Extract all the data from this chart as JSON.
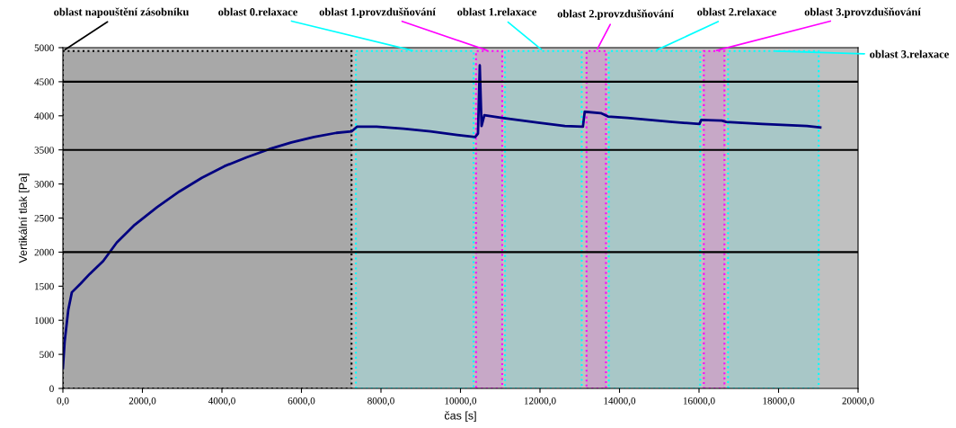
{
  "chart_data": {
    "type": "line",
    "xlabel": "čas [s]",
    "ylabel": "Vertikální tlak [Pa]",
    "x": [
      0,
      45,
      135,
      225,
      450,
      675,
      1015,
      1355,
      1805,
      2370,
      2930,
      3495,
      4060,
      4620,
      5185,
      5750,
      6315,
      6880,
      7260,
      7395,
      7890,
      8570,
      9245,
      9920,
      10370,
      10440,
      10485,
      10530,
      10600,
      11050,
      11950,
      12625,
      13080,
      13125,
      13530,
      13710,
      14205,
      15330,
      16010,
      16055,
      16575,
      16685,
      17590,
      18715,
      19050
    ],
    "series": [
      {
        "color": "#000080",
        "values": [
          300,
          690,
          1150,
          1410,
          1540,
          1680,
          1870,
          2140,
          2400,
          2660,
          2890,
          3090,
          3260,
          3390,
          3510,
          3610,
          3690,
          3750,
          3770,
          3840,
          3840,
          3810,
          3770,
          3720,
          3690,
          3740,
          4740,
          3850,
          4010,
          3970,
          3900,
          3850,
          3840,
          4060,
          4040,
          3990,
          3970,
          3910,
          3880,
          3940,
          3930,
          3910,
          3880,
          3850,
          3830
        ]
      }
    ],
    "xlim": [
      0,
      20000
    ],
    "xticks": [
      {
        "value": 0,
        "label": "0,0"
      },
      {
        "value": 2000,
        "label": "2000,0"
      },
      {
        "value": 4000,
        "label": "4000,0"
      },
      {
        "value": 6000,
        "label": "6000,0"
      },
      {
        "value": 8000,
        "label": "8000,0"
      },
      {
        "value": 10000,
        "label": "10000,0"
      },
      {
        "value": 12000,
        "label": "12000,0"
      },
      {
        "value": 14000,
        "label": "14000,0"
      },
      {
        "value": 16000,
        "label": "16000,0"
      },
      {
        "value": 18000,
        "label": "18000,0"
      },
      {
        "value": 20000,
        "label": "20000,0"
      }
    ],
    "ylim": [
      0,
      5000
    ],
    "yticks": [
      0,
      500,
      1000,
      1500,
      2000,
      2500,
      3000,
      3500,
      4000,
      4500,
      5000
    ],
    "grid": false,
    "marker": "none",
    "line_style": "solid",
    "ref_lines": [
      {
        "axis": "y",
        "value": 4500,
        "color": "#000000"
      },
      {
        "axis": "y",
        "value": 3500,
        "color": "#000000"
      },
      {
        "axis": "y",
        "value": 2000,
        "color": "#000000"
      }
    ],
    "bands": [
      {
        "axis": "x",
        "from": 0,
        "to": 7260,
        "label": "oblast napouštění zásobníku",
        "color": "#000000"
      },
      {
        "axis": "x",
        "from": 7370,
        "to": 10330,
        "label": "oblast 0.relaxace",
        "color": "#00ffff"
      },
      {
        "axis": "x",
        "from": 10390,
        "to": 11050,
        "label": "oblast 1.provzdušňování",
        "color": "#ff00ff"
      },
      {
        "axis": "x",
        "from": 11120,
        "to": 13050,
        "label": "oblast 1.relaxace",
        "color": "#00ffff"
      },
      {
        "axis": "x",
        "from": 13170,
        "to": 13660,
        "label": "oblast 2.provzdušňování",
        "color": "#ff00ff"
      },
      {
        "axis": "x",
        "from": 13730,
        "to": 16030,
        "label": "oblast 2.relaxace",
        "color": "#00ffff"
      },
      {
        "axis": "x",
        "from": 16120,
        "to": 16640,
        "label": "oblast 3.provzdušňování",
        "color": "#ff00ff"
      },
      {
        "axis": "x",
        "from": 16730,
        "to": 19010,
        "label": "oblast 3.relaxace",
        "color": "#00ffff"
      }
    ]
  }
}
